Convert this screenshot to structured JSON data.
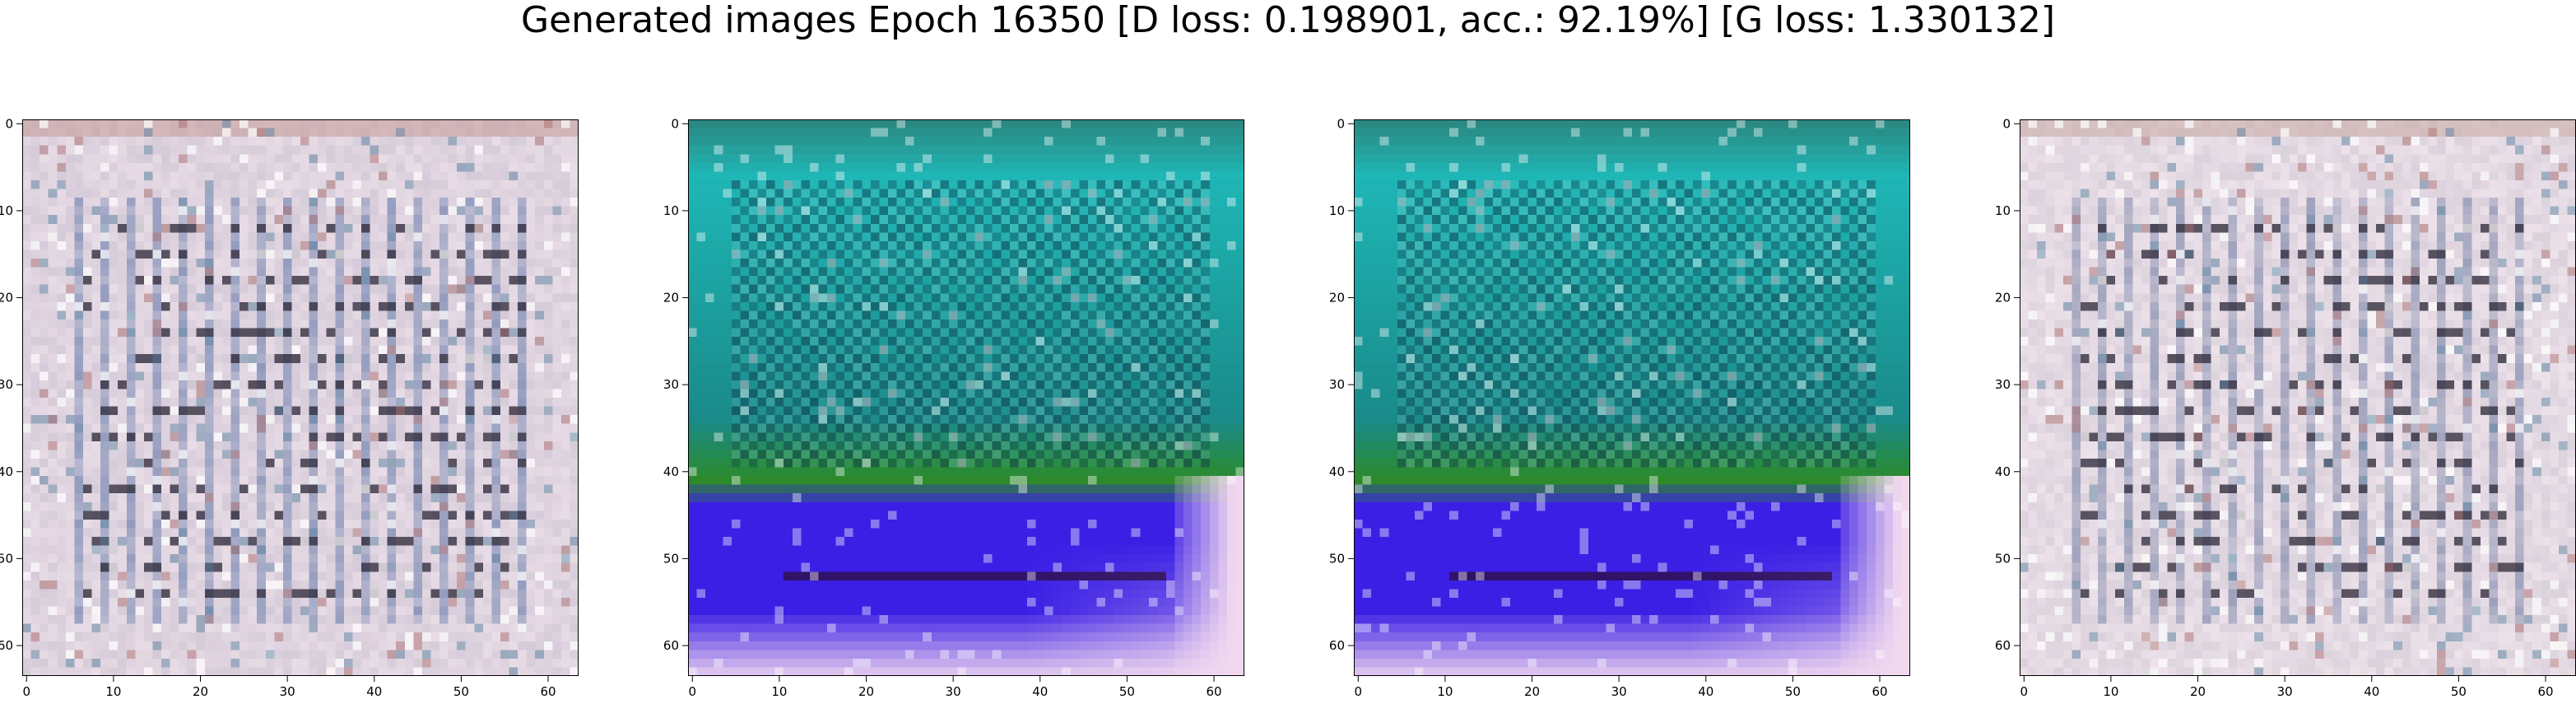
{
  "figure": {
    "title": "Generated images Epoch 16350 [D loss: 0.198901, acc.: 92.19%] [G loss: 1.330132]"
  },
  "axes": {
    "x_ticks": [
      "0",
      "10",
      "20",
      "30",
      "40",
      "50",
      "60"
    ],
    "y_ticks": [
      "0",
      "10",
      "20",
      "30",
      "40",
      "50",
      "60"
    ],
    "x_tick_values": [
      0,
      10,
      20,
      30,
      40,
      50,
      60
    ],
    "y_tick_values": [
      0,
      10,
      20,
      30,
      40,
      50,
      60
    ],
    "xlim": [
      -0.5,
      63.5
    ],
    "ylim": [
      63.5,
      -0.5
    ]
  },
  "panels": [
    {
      "name": "generated-image-1",
      "palette": "pastel",
      "colors": {
        "base": "#e8dce6",
        "mid": "#c9c0cf",
        "dark": "#2a2636",
        "accent": "#6b7fae",
        "top": "#c49a96"
      }
    },
    {
      "name": "generated-image-2",
      "palette": "teal-blue",
      "colors": {
        "top": "#2a8a83",
        "upper": "#1fb6b6",
        "mid": "#1a8a8a",
        "green": "#2c8a2a",
        "blue": "#3b1fe5",
        "bottom": "#f1d8ef"
      }
    },
    {
      "name": "generated-image-3",
      "palette": "teal-blue",
      "colors": {
        "top": "#2a8a83",
        "upper": "#1fb6b6",
        "mid": "#1a8a8a",
        "green": "#2c8a2a",
        "blue": "#3b1fe5",
        "bottom": "#f1d8ef"
      }
    },
    {
      "name": "generated-image-4",
      "palette": "pastel",
      "colors": {
        "base": "#ede2ea",
        "mid": "#cfc6d2",
        "dark": "#2a2636",
        "accent": "#7b86aa",
        "top": "#c8a8a2"
      }
    }
  ]
}
